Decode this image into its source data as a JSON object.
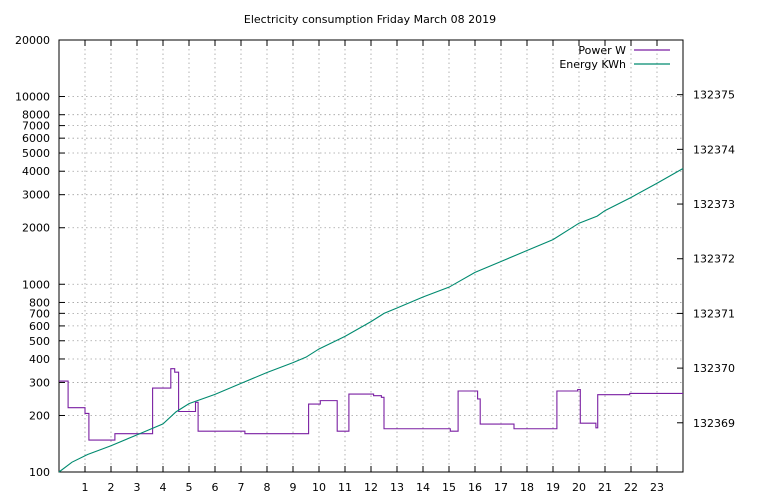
{
  "chart_data": {
    "type": "line",
    "title": "Electricity consumption Friday March 08 2019",
    "xlabel": "",
    "ylabel": "",
    "y2label": "",
    "grid": true,
    "legend_position": "top-right",
    "x_ticks": [
      1,
      2,
      3,
      4,
      5,
      6,
      7,
      8,
      9,
      10,
      11,
      12,
      13,
      14,
      15,
      16,
      17,
      18,
      19,
      20,
      21,
      22,
      23
    ],
    "xlim": [
      0,
      24
    ],
    "y_scale": "log",
    "ylim": [
      100,
      20000
    ],
    "y_ticks": [
      100,
      200,
      300,
      400,
      500,
      600,
      700,
      800,
      1000,
      2000,
      3000,
      4000,
      5000,
      6000,
      7000,
      8000,
      10000,
      20000
    ],
    "y2lim": [
      132368.1,
      132376.0
    ],
    "y2_ticks": [
      132369,
      132370,
      132371,
      132372,
      132373,
      132374,
      132375
    ],
    "series": [
      {
        "name": "Power W",
        "axis": "y",
        "color": "#7a1fa2",
        "step": true,
        "points": [
          [
            0,
            305
          ],
          [
            0.35,
            305
          ],
          [
            0.35,
            220
          ],
          [
            1.0,
            220
          ],
          [
            1.0,
            205
          ],
          [
            1.15,
            205
          ],
          [
            1.15,
            148
          ],
          [
            2.15,
            148
          ],
          [
            2.15,
            160
          ],
          [
            3.6,
            160
          ],
          [
            3.6,
            280
          ],
          [
            4.3,
            280
          ],
          [
            4.3,
            355
          ],
          [
            4.45,
            355
          ],
          [
            4.45,
            340
          ],
          [
            4.6,
            340
          ],
          [
            4.6,
            210
          ],
          [
            5.25,
            210
          ],
          [
            5.25,
            235
          ],
          [
            5.35,
            235
          ],
          [
            5.35,
            165
          ],
          [
            7.15,
            165
          ],
          [
            7.15,
            160
          ],
          [
            9.6,
            160
          ],
          [
            9.6,
            230
          ],
          [
            10.05,
            230
          ],
          [
            10.05,
            240
          ],
          [
            10.7,
            240
          ],
          [
            10.7,
            165
          ],
          [
            11.15,
            165
          ],
          [
            11.15,
            260
          ],
          [
            12.1,
            260
          ],
          [
            12.1,
            255
          ],
          [
            12.4,
            255
          ],
          [
            12.4,
            250
          ],
          [
            12.5,
            250
          ],
          [
            12.5,
            170
          ],
          [
            15.05,
            170
          ],
          [
            15.05,
            165
          ],
          [
            15.35,
            165
          ],
          [
            15.35,
            270
          ],
          [
            16.1,
            270
          ],
          [
            16.1,
            245
          ],
          [
            16.2,
            245
          ],
          [
            16.2,
            180
          ],
          [
            17.5,
            180
          ],
          [
            17.5,
            170
          ],
          [
            19.15,
            170
          ],
          [
            19.15,
            270
          ],
          [
            19.95,
            270
          ],
          [
            19.95,
            275
          ],
          [
            20.05,
            275
          ],
          [
            20.05,
            182
          ],
          [
            20.65,
            182
          ],
          [
            20.65,
            172
          ],
          [
            20.72,
            172
          ],
          [
            20.72,
            258
          ],
          [
            21.95,
            258
          ],
          [
            21.95,
            262
          ],
          [
            24,
            262
          ]
        ]
      },
      {
        "name": "Energy KWh",
        "axis": "y2",
        "color": "#008a6f",
        "step": false,
        "points": [
          [
            0,
            132368.1
          ],
          [
            0.5,
            132368.28
          ],
          [
            1.1,
            132368.42
          ],
          [
            2,
            132368.58
          ],
          [
            3,
            132368.78
          ],
          [
            4,
            132368.98
          ],
          [
            4.5,
            132369.2
          ],
          [
            5,
            132369.35
          ],
          [
            6,
            132369.52
          ],
          [
            7,
            132369.72
          ],
          [
            8,
            132369.92
          ],
          [
            9,
            132370.1
          ],
          [
            9.5,
            132370.2
          ],
          [
            10,
            132370.35
          ],
          [
            11,
            132370.58
          ],
          [
            12,
            132370.85
          ],
          [
            12.5,
            132371
          ],
          [
            13,
            132371.1
          ],
          [
            14,
            132371.3
          ],
          [
            15,
            132371.48
          ],
          [
            16,
            132371.75
          ],
          [
            17,
            132371.95
          ],
          [
            18,
            132372.15
          ],
          [
            19,
            132372.35
          ],
          [
            20,
            132372.65
          ],
          [
            20.7,
            132372.78
          ],
          [
            21,
            132372.88
          ],
          [
            22,
            132373.12
          ],
          [
            23,
            132373.38
          ],
          [
            24,
            132373.65
          ]
        ]
      }
    ]
  }
}
